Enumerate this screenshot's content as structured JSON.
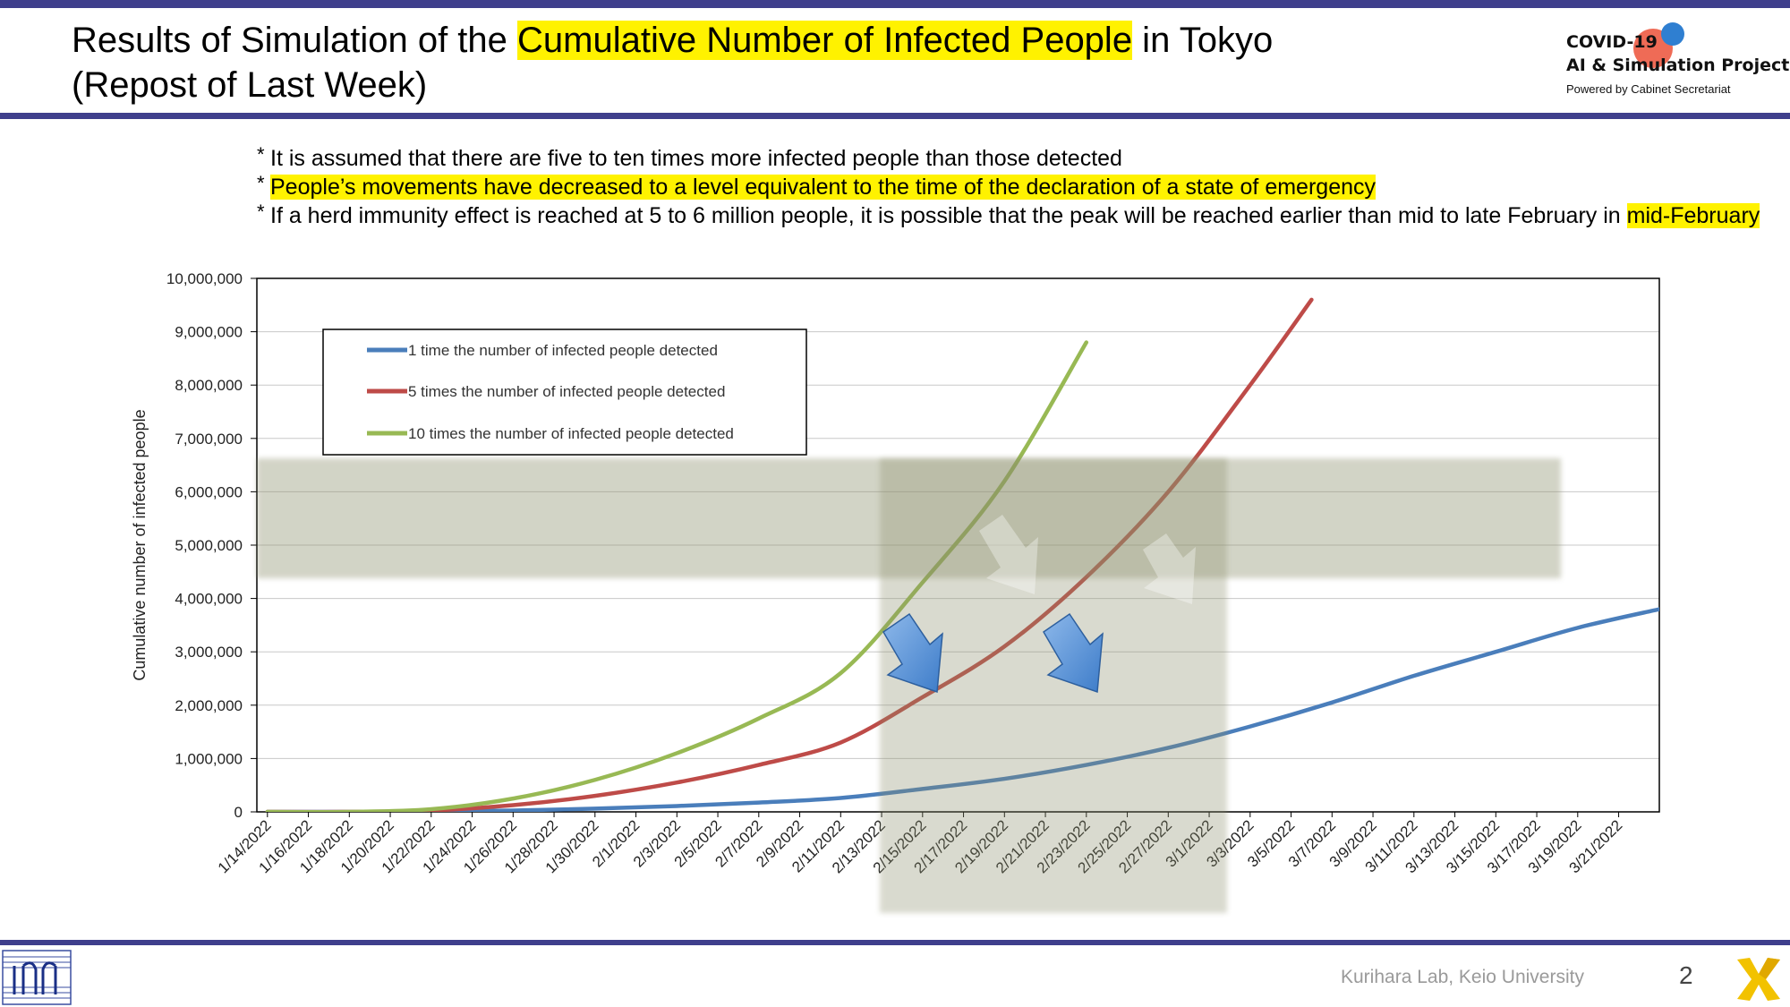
{
  "header": {
    "title_part1": "Results of Simulation of the ",
    "title_highlight": "Cumulative Number of Infected People",
    "title_part2": " in Tokyo",
    "title_line2": "(Repost of Last Week)"
  },
  "logo": {
    "line1": "COVID-19",
    "line2": "AI & Simulation Project",
    "line3": "Powered by Cabinet Secretariat"
  },
  "notes": [
    {
      "marker": "*",
      "text": "It is assumed that there are five to ten times more infected people than those detected",
      "highlight": ""
    },
    {
      "marker": "*",
      "text": "",
      "highlight": "People’s movements have decreased to a level equivalent to the time of the declaration of a state of emergency"
    },
    {
      "marker": "*",
      "text": "If a herd immunity effect is reached at 5 to 6 million people, it is possible that the peak will be reached earlier than mid to late February in ",
      "highlight": "mid-February"
    }
  ],
  "chart_data": {
    "type": "line",
    "title": "",
    "xlabel": "",
    "ylabel": "Cumulative number of infected people",
    "ylim": [
      0,
      10000000
    ],
    "yticks": [
      "0",
      "1,000,000",
      "2,000,000",
      "3,000,000",
      "4,000,000",
      "5,000,000",
      "6,000,000",
      "7,000,000",
      "8,000,000",
      "9,000,000",
      "10,000,000"
    ],
    "x_ticks": [
      "1/14/2022",
      "1/16/2022",
      "1/18/2022",
      "1/20/2022",
      "1/22/2022",
      "1/24/2022",
      "1/26/2022",
      "1/28/2022",
      "1/30/2022",
      "2/1/2022",
      "2/3/2022",
      "2/5/2022",
      "2/7/2022",
      "2/9/2022",
      "2/11/2022",
      "2/13/2022",
      "2/15/2022",
      "2/17/2022",
      "2/19/2022",
      "2/21/2022",
      "2/23/2022",
      "2/25/2022",
      "2/27/2022",
      "3/1/2022",
      "3/3/2022",
      "3/5/2022",
      "3/7/2022",
      "3/9/2022",
      "3/11/2022",
      "3/13/2022",
      "3/15/2022",
      "3/17/2022",
      "3/19/2022",
      "3/21/2022"
    ],
    "grid": "horizontal",
    "legend_position": "top-left",
    "series": [
      {
        "name": "1 time the number of infected people detected",
        "color": "#4a7ebb",
        "x": [
          "1/14/2022",
          "1/18/2022",
          "1/22/2022",
          "1/26/2022",
          "1/30/2022",
          "2/3/2022",
          "2/7/2022",
          "2/11/2022",
          "2/15/2022",
          "2/19/2022",
          "2/23/2022",
          "2/27/2022",
          "3/3/2022",
          "3/7/2022",
          "3/11/2022",
          "3/15/2022",
          "3/19/2022",
          "3/23/2022"
        ],
        "values": [
          0,
          0,
          5000,
          25000,
          60000,
          110000,
          175000,
          260000,
          430000,
          620000,
          880000,
          1200000,
          1600000,
          2050000,
          2550000,
          3000000,
          3450000,
          3800000
        ]
      },
      {
        "name": "5 times the number of infected people detected",
        "color": "#be4b48",
        "x": [
          "1/14/2022",
          "1/18/2022",
          "1/22/2022",
          "1/26/2022",
          "1/30/2022",
          "2/3/2022",
          "2/7/2022",
          "2/11/2022",
          "2/15/2022",
          "2/19/2022",
          "2/23/2022",
          "2/27/2022",
          "3/3/2022",
          "3/6/2022"
        ],
        "values": [
          0,
          0,
          25000,
          125000,
          300000,
          550000,
          880000,
          1300000,
          2150000,
          3100000,
          4400000,
          6000000,
          8000000,
          9600000
        ]
      },
      {
        "name": "10 times the number of infected people detected",
        "color": "#98b954",
        "x": [
          "1/14/2022",
          "1/18/2022",
          "1/22/2022",
          "1/26/2022",
          "1/30/2022",
          "2/3/2022",
          "2/7/2022",
          "2/11/2022",
          "2/15/2022",
          "2/19/2022",
          "2/23/2022"
        ],
        "values": [
          0,
          0,
          50000,
          250000,
          600000,
          1100000,
          1750000,
          2600000,
          4300000,
          6200000,
          8800000
        ]
      }
    ]
  },
  "footer": {
    "credit": "Kurihara Lab, Keio University",
    "page": "2"
  }
}
